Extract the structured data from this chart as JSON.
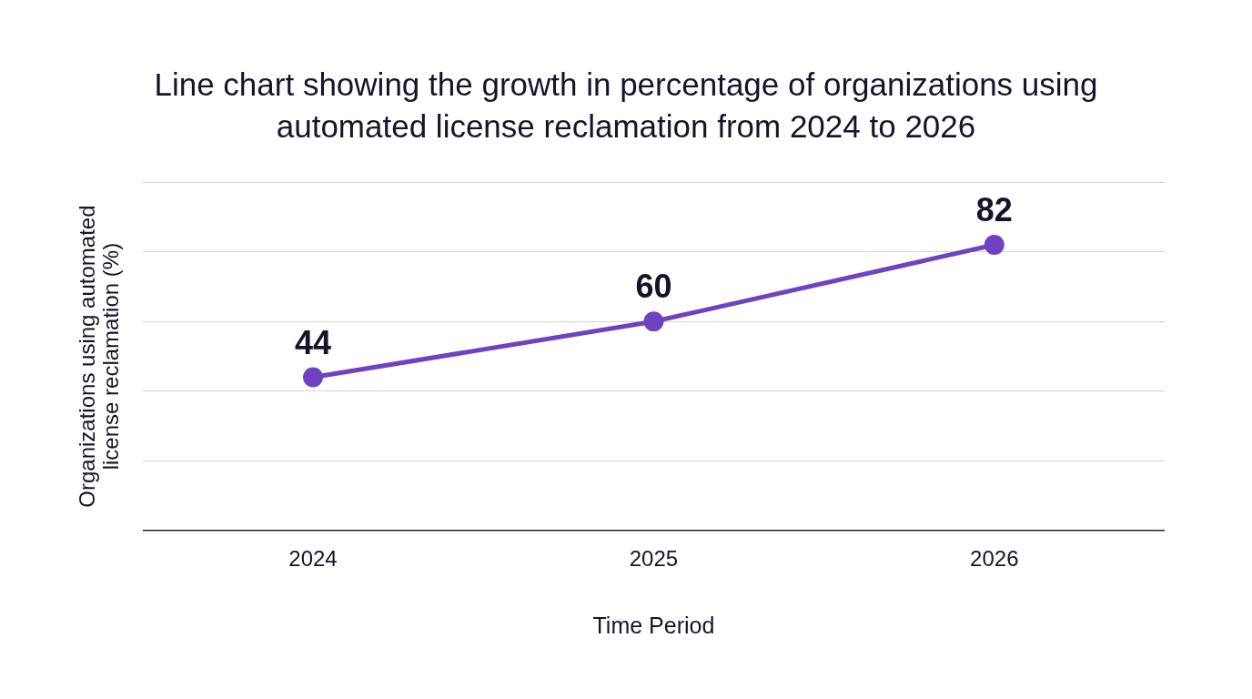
{
  "chart_data": {
    "type": "line",
    "title": "Line chart showing the growth in percentage of organizations using automated license reclamation from 2024 to 2026",
    "xlabel": "Time Period",
    "ylabel": "Organizations using automated license reclamation (%)",
    "categories": [
      "2024",
      "2025",
      "2026"
    ],
    "series": [
      {
        "color": "#6f42c1",
        "values": [
          44,
          60,
          82
        ]
      }
    ],
    "ylim": [
      0,
      100
    ],
    "yticks": [
      {
        "value": 0,
        "label": null
      },
      {
        "value": 20,
        "label": null
      },
      {
        "value": 40,
        "label": null
      },
      {
        "value": 60,
        "label": null
      },
      {
        "value": 80,
        "label": null
      },
      {
        "value": 100,
        "label": null
      }
    ],
    "tick_labels": "x",
    "grid": "y",
    "data_labels": true,
    "marker": "circle",
    "line_style": "solid",
    "legend": false
  }
}
